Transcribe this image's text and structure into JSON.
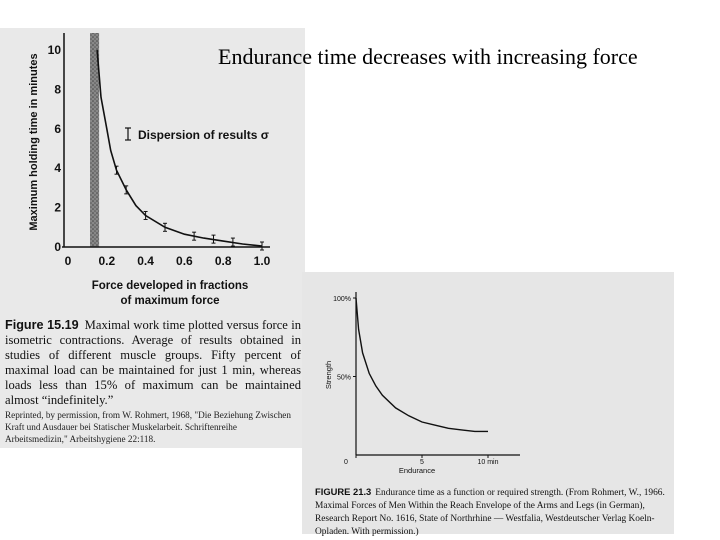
{
  "slide": {
    "title": "Endurance time decreases with increasing force"
  },
  "chart_data": [
    {
      "type": "line",
      "ylabel": "Maximum holding time in minutes",
      "xlabel_line1": "Force developed in fractions",
      "xlabel_line2": "of maximum force",
      "xlim": [
        0,
        1.0
      ],
      "ylim": [
        0,
        10
      ],
      "x_ticks": [
        "0",
        "0.2",
        "0.4",
        "0.6",
        "0.8",
        "1.0"
      ],
      "y_ticks": [
        "0",
        "2",
        "4",
        "6",
        "8",
        "10"
      ],
      "legend": "Dispersion of results σ",
      "shaded_region_x": [
        0,
        0.15
      ],
      "x": [
        0.15,
        0.17,
        0.2,
        0.22,
        0.25,
        0.3,
        0.35,
        0.4,
        0.5,
        0.6,
        0.7,
        0.8,
        0.9,
        1.0
      ],
      "y": [
        10,
        7.6,
        6.0,
        4.9,
        3.9,
        2.9,
        2.1,
        1.6,
        1.0,
        0.65,
        0.45,
        0.3,
        0.15,
        0.05
      ],
      "error_bar_x": [
        0.25,
        0.3,
        0.4,
        0.5,
        0.65,
        0.75,
        0.85,
        1.0
      ],
      "error_bar_y": [
        3.9,
        2.9,
        1.6,
        1.0,
        0.55,
        0.4,
        0.25,
        0.05
      ],
      "caption_label": "Figure 15.19",
      "caption_text": "Maximal work time plotted versus force in isometric contractions. Average of results obtained in studies of different muscle groups. Fifty percent of maximal load can be maintained for just 1 min, whereas loads less than 15% of maximum can be maintained almost “indefinitely.”",
      "credit_text": "Reprinted, by permission, from W. Rohmert, 1968, \"Die Beziehung Zwischen Kraft und Ausdauer bei Statischer Muskelarbeit. Schriftenreihe Arbeitsmedizin,\" Arbeitshygiene 22:118."
    },
    {
      "type": "line",
      "ylabel": "Strength",
      "xlabel": "Endurance",
      "y_ticks": [
        "100%",
        "50%"
      ],
      "x_ticks": [
        "0",
        "5",
        "10 min"
      ],
      "xlim": [
        0,
        10
      ],
      "ylim": [
        0,
        100
      ],
      "x": [
        0,
        0.2,
        0.5,
        1,
        1.5,
        2,
        3,
        4,
        5,
        6,
        7,
        8,
        9,
        10
      ],
      "y": [
        100,
        80,
        65,
        52,
        44,
        38,
        30,
        25,
        21,
        19,
        17,
        16,
        15,
        15
      ],
      "caption_label": "FIGURE 21.3",
      "caption_text": "Endurance time as a function or required strength. (From Rohmert, W., 1966. Maximal Forces of Men Within the Reach Envelope of the Arms and Legs (in German), Research Report No. 1616, State of Northrhine — Westfalia, Westdeutscher Verlag Koeln-Opladen. With permission.)"
    }
  ]
}
